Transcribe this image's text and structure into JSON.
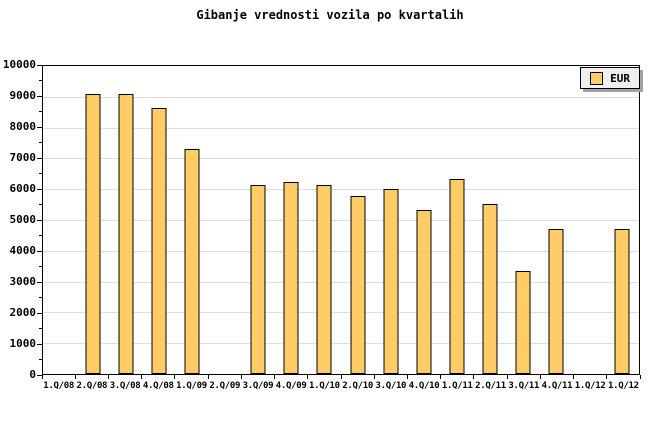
{
  "title": "Gibanje vrednosti vozila po kvartalih",
  "legend": {
    "label": "EUR"
  },
  "colors": {
    "background": "#FFFFFF",
    "bar_fill": "#FFCC66",
    "bar_border": "#000000",
    "grid": "#DEDEDE",
    "axis": "#000000",
    "legend_bg": "#EFEFEF",
    "legend_shadow": "#A3A3A3",
    "text": "#000000"
  },
  "chart_data": {
    "type": "bar",
    "title": "Gibanje vrednosti vozila po kvartalih",
    "xlabel": "",
    "ylabel": "",
    "categories": [
      "1.Q/08",
      "2.Q/08",
      "3.Q/08",
      "4.Q/08",
      "1.Q/09",
      "2.Q/09",
      "3.Q/09",
      "4.Q/09",
      "1.Q/10",
      "2.Q/10",
      "3.Q/10",
      "4.Q/10",
      "1.Q/11",
      "2.Q/11",
      "3.Q/11",
      "4.Q/11",
      "1.Q/12",
      "1.Q/12"
    ],
    "series": [
      {
        "name": "EUR",
        "values": [
          null,
          9100,
          9100,
          8650,
          7300,
          null,
          6150,
          6250,
          6150,
          5780,
          6000,
          5320,
          6320,
          5530,
          3330,
          4720,
          null,
          4720
        ]
      }
    ],
    "ylim": [
      0,
      10000
    ],
    "yticks": [
      0,
      1000,
      2000,
      3000,
      4000,
      5000,
      6000,
      7000,
      8000,
      9000,
      10000
    ],
    "minor_tick_step": 500,
    "grid": "horizontal-major-only",
    "legend_position": "top-right",
    "legend_entries": [
      "EUR"
    ]
  }
}
